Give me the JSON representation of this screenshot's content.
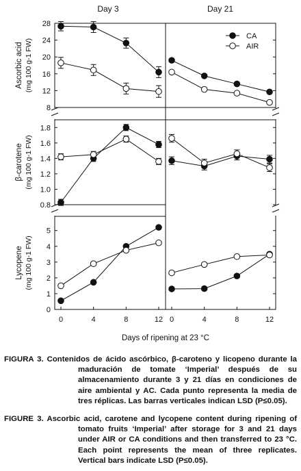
{
  "chart_data": [
    {
      "type": "line",
      "panel": "Ascorbic acid - Day 3",
      "title": "Day 3",
      "ylabel": "Ascorbic acid",
      "yunit": "(mg 100 g-1 FW)",
      "ylim": [
        8,
        28
      ],
      "yticks": [
        8,
        12,
        16,
        20,
        24,
        28
      ],
      "x": [
        0,
        4,
        8,
        12
      ],
      "series": [
        {
          "name": "CA",
          "values": [
            27.3,
            27.1,
            23.3,
            16.4
          ],
          "err": [
            1.1,
            1.3,
            1.2,
            1.3
          ]
        },
        {
          "name": "AIR",
          "values": [
            18.6,
            16.9,
            12.5,
            11.8
          ],
          "err": [
            1.3,
            1.3,
            1.3,
            1.4
          ]
        }
      ]
    },
    {
      "type": "line",
      "panel": "Ascorbic acid - Day 21",
      "title": "Day 21",
      "ylim": [
        8,
        28
      ],
      "x": [
        0,
        4,
        8,
        12
      ],
      "legend_position": "top-right",
      "series": [
        {
          "name": "CA",
          "values": [
            19.2,
            15.5,
            13.6,
            11.7
          ],
          "err": [
            0,
            0,
            0,
            0
          ]
        },
        {
          "name": "AIR",
          "values": [
            16.4,
            12.3,
            11.4,
            9.2
          ],
          "err": [
            0,
            0,
            0,
            0
          ]
        }
      ]
    },
    {
      "type": "line",
      "panel": "beta-carotene - Day 3",
      "ylabel": "β-carotene",
      "yunit": "(mg 100 g-1 FW)",
      "ylim": [
        0.8,
        1.9
      ],
      "yticks": [
        0.8,
        1.0,
        1.2,
        1.4,
        1.6,
        1.8
      ],
      "x": [
        0,
        4,
        8,
        12
      ],
      "series": [
        {
          "name": "CA",
          "values": [
            0.83,
            1.4,
            1.8,
            1.58
          ],
          "err": [
            0.04,
            0.04,
            0.04,
            0.04
          ]
        },
        {
          "name": "AIR",
          "values": [
            1.42,
            1.45,
            1.65,
            1.36
          ],
          "err": [
            0.04,
            0.04,
            0.04,
            0.04
          ]
        }
      ]
    },
    {
      "type": "line",
      "panel": "beta-carotene - Day 21",
      "ylim": [
        0.8,
        1.9
      ],
      "x": [
        0,
        4,
        8,
        12
      ],
      "series": [
        {
          "name": "CA",
          "values": [
            1.37,
            1.3,
            1.43,
            1.39
          ],
          "err": [
            0.05,
            0.05,
            0.05,
            0.05
          ]
        },
        {
          "name": "AIR",
          "values": [
            1.66,
            1.34,
            1.46,
            1.28
          ],
          "err": [
            0.05,
            0.05,
            0.05,
            0.05
          ]
        }
      ]
    },
    {
      "type": "line",
      "panel": "Lycopene - Day 3",
      "ylabel": "Lycopene",
      "yunit": "(mg 100 g-1 FW)",
      "ylim": [
        0,
        5.9
      ],
      "yticks": [
        0,
        1,
        2,
        3,
        4,
        5
      ],
      "xticks": [
        0,
        4,
        8,
        12
      ],
      "xlabel": "Days of ripening at 23 °C",
      "x": [
        0,
        4,
        8,
        12
      ],
      "series": [
        {
          "name": "CA",
          "values": [
            0.55,
            1.72,
            4.0,
            5.2
          ]
        },
        {
          "name": "AIR",
          "values": [
            1.5,
            2.9,
            3.75,
            4.22
          ]
        }
      ]
    },
    {
      "type": "line",
      "panel": "Lycopene - Day 21",
      "ylim": [
        0,
        5.9
      ],
      "xticks": [
        0,
        4,
        8,
        12
      ],
      "x": [
        0,
        4,
        8,
        12
      ],
      "series": [
        {
          "name": "CA",
          "values": [
            1.3,
            1.32,
            2.12,
            3.5
          ]
        },
        {
          "name": "AIR",
          "values": [
            2.32,
            2.85,
            3.35,
            3.45
          ]
        }
      ]
    }
  ],
  "caption_es": {
    "label": "FIGURA 3.",
    "text": "Contenidos de ácido ascórbico, β-caroteno y licopeno durante la maduración de tomate ‘Imperial’ después de su almacenamiento durante 3 y 21 días en condiciones de aire ambiental y AC. Cada punto representa la media de tres réplicas. Las barras verticales indican LSD",
    "stat": "(P≤0.05)."
  },
  "caption_en": {
    "label": "FIGURE 3.",
    "text": "Ascorbic acid, carotene and lycopene content during ripening of tomato fruits ‘Imperial’ after storage for 3 and 21 days under AIR or CA conditions and then transferred to 23 °C. Each point represents the mean of three replicates. Vertical bars indicate LSD",
    "stat": "(P≤0.05)."
  }
}
